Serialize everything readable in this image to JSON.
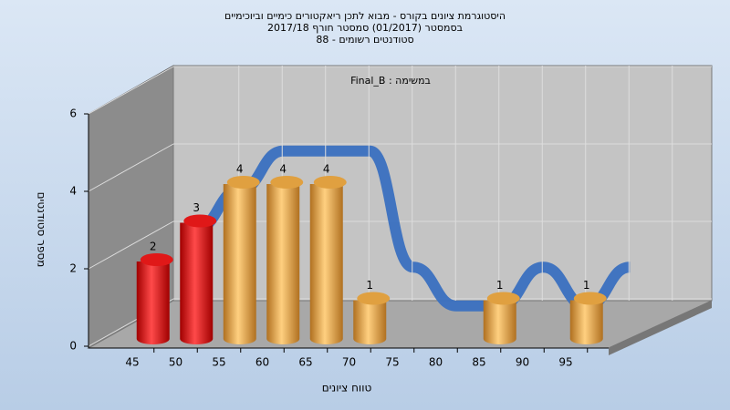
{
  "chart_data": {
    "type": "bar",
    "title_lines": [
      "היסטוגרמת ציונים בקורס - מבוא לתכן ריאקטורים כימיים וביוכימיים",
      "בסמסטר (01/2017) סמסטר חורף 2017/18",
      "סטודנטים רשומים - 88"
    ],
    "annotation": "במשימה : Final_B",
    "x_label": "טווח ציונים",
    "y_label": "מספר סטודנטים",
    "categories": [
      "45",
      "50",
      "55",
      "60",
      "65",
      "70",
      "75",
      "80",
      "85",
      "90",
      "95"
    ],
    "values": [
      2,
      3,
      4,
      4,
      4,
      1,
      0,
      0,
      1,
      0,
      1
    ],
    "colors": [
      "#e01818",
      "#e01818",
      "#e0a040",
      "#e0a040",
      "#e0a040",
      "#e0a040",
      "#e0a040",
      "#e0a040",
      "#e0a040",
      "#e0a040",
      "#e0a040"
    ],
    "line_color": "#3a70c0",
    "ylim": [
      0,
      6
    ],
    "yticks": [
      0,
      2,
      4,
      6
    ],
    "grid": true
  }
}
